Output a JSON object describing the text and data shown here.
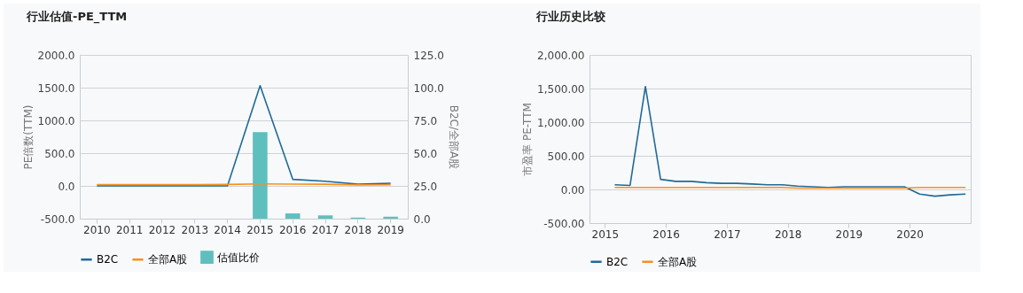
{
  "chart_data": [
    {
      "type": "line",
      "title": "行业估值-PE_TTM",
      "ylabel": "PE倍数(TTM)",
      "y2label": "B2C/全部A股",
      "categories": [
        "2010",
        "2011",
        "2012",
        "2013",
        "2014",
        "2015",
        "2016",
        "2017",
        "2018",
        "2019"
      ],
      "series": [
        {
          "name": "B2C",
          "color": "#1f6a98",
          "values": [
            0,
            0,
            0,
            0,
            0,
            1530,
            100,
            70,
            25,
            40
          ]
        },
        {
          "name": "全部A股",
          "color": "#f7901e",
          "values": [
            20,
            20,
            20,
            20,
            22,
            30,
            28,
            25,
            15,
            16
          ]
        },
        {
          "name": "估值比价",
          "type": "bar",
          "axis": "y2",
          "color": "#5fbfbf",
          "values": [
            null,
            null,
            null,
            null,
            null,
            66,
            4,
            2.5,
            0.8,
            1.5
          ]
        }
      ],
      "ylim": [
        -500,
        2000
      ],
      "yticks": [
        {
          "value": -500,
          "label": "-500.0"
        },
        {
          "value": 0,
          "label": "0.0"
        },
        {
          "value": 500,
          "label": "500.0"
        },
        {
          "value": 1000,
          "label": "1000.0"
        },
        {
          "value": 1500,
          "label": "1500.0"
        },
        {
          "value": 2000,
          "label": "2000.0"
        }
      ],
      "y2lim": [
        0,
        125
      ],
      "y2ticks": [
        {
          "value": 0,
          "label": "0.0"
        },
        {
          "value": 25,
          "label": "25.0"
        },
        {
          "value": 50,
          "label": "50.0"
        },
        {
          "value": 75,
          "label": "75.0"
        },
        {
          "value": 100,
          "label": "100.0"
        },
        {
          "value": 125,
          "label": "125.0"
        }
      ],
      "grid": "y",
      "legend": "bottom"
    },
    {
      "type": "line",
      "title": "行业历史比较",
      "ylabel": "市盈率 PE-TTM",
      "x": [
        "2015-03",
        "2015-06",
        "2015-09",
        "2015-12",
        "2016-03",
        "2016-06",
        "2016-09",
        "2016-12",
        "2017-03",
        "2017-06",
        "2017-09",
        "2017-12",
        "2018-03",
        "2018-06",
        "2018-09",
        "2018-12",
        "2019-03",
        "2019-06",
        "2019-09",
        "2019-12",
        "2020-03",
        "2020-06",
        "2020-09",
        "2020-12"
      ],
      "series": [
        {
          "name": "B2C",
          "color": "#1f6a98",
          "values": [
            70,
            60,
            1530,
            150,
            120,
            120,
            100,
            90,
            90,
            80,
            70,
            70,
            50,
            40,
            30,
            40,
            40,
            40,
            40,
            40,
            -70,
            -100,
            -80,
            -70
          ]
        },
        {
          "name": "全部A股",
          "color": "#f7901e",
          "values": [
            30,
            30,
            30,
            30,
            30,
            30,
            30,
            30,
            30,
            30,
            30,
            30,
            20,
            20,
            20,
            20,
            20,
            20,
            20,
            20,
            30,
            30,
            30,
            30
          ]
        }
      ],
      "xlim": [
        "2014-10",
        "2021-01"
      ],
      "xticks": [
        "2015",
        "2016",
        "2017",
        "2018",
        "2019",
        "2020"
      ],
      "ylim": [
        -500,
        2000
      ],
      "yticks": [
        {
          "value": -500,
          "label": "-500.00"
        },
        {
          "value": 0,
          "label": "0.00"
        },
        {
          "value": 500,
          "label": "500.00"
        },
        {
          "value": 1000,
          "label": "1,000.00"
        },
        {
          "value": 1500,
          "label": "1,500.00"
        },
        {
          "value": 2000,
          "label": "2,000.00"
        }
      ],
      "grid": "y",
      "legend": "bottom"
    }
  ]
}
